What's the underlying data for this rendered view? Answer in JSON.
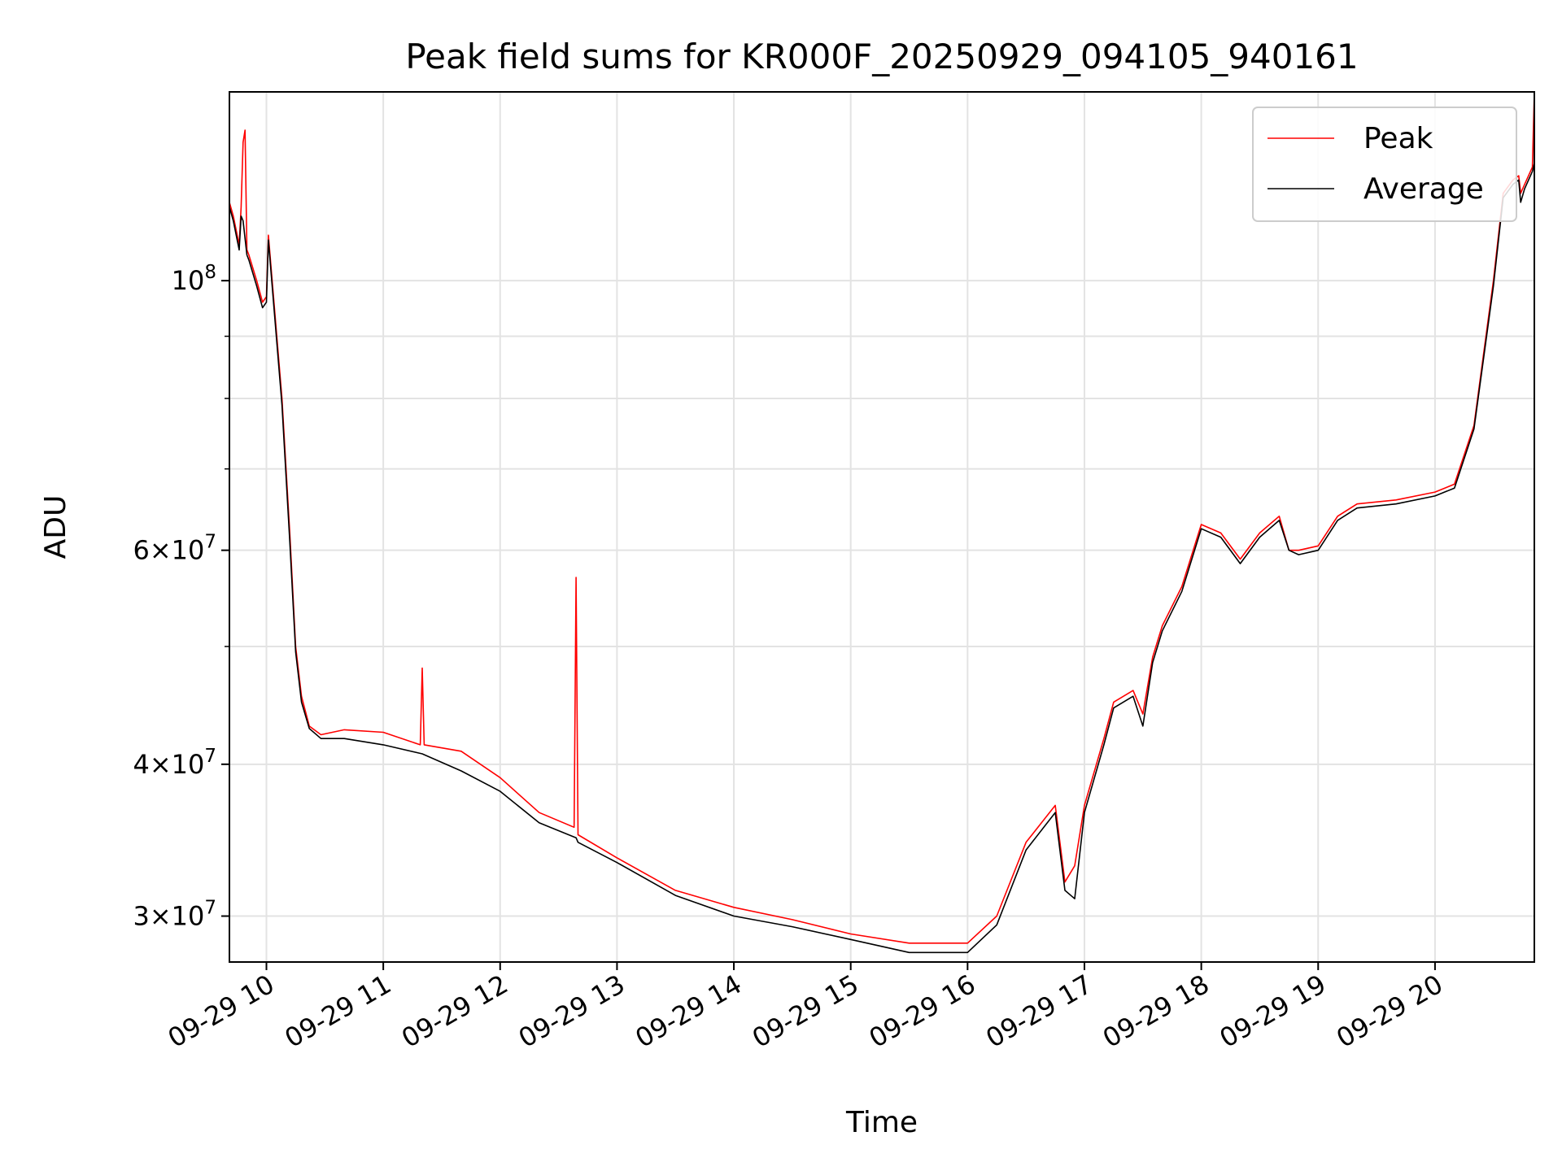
{
  "chart_data": {
    "type": "line",
    "title": "Peak field sums for KR000F_20250929_094105_940161",
    "xlabel": "Time",
    "ylabel": "ADU",
    "y_scale": "log",
    "ylim": [
      27500000,
      143000000
    ],
    "xlim": [
      "2025-09-29 09:41",
      "2025-09-29 20:51"
    ],
    "grid": true,
    "legend_position": "top-right",
    "x_ticks": [
      {
        "t": "2025-09-29 10:00",
        "label": "09-29 10"
      },
      {
        "t": "2025-09-29 11:00",
        "label": "09-29 11"
      },
      {
        "t": "2025-09-29 12:00",
        "label": "09-29 12"
      },
      {
        "t": "2025-09-29 13:00",
        "label": "09-29 13"
      },
      {
        "t": "2025-09-29 14:00",
        "label": "09-29 14"
      },
      {
        "t": "2025-09-29 15:00",
        "label": "09-29 15"
      },
      {
        "t": "2025-09-29 16:00",
        "label": "09-29 16"
      },
      {
        "t": "2025-09-29 17:00",
        "label": "09-29 17"
      },
      {
        "t": "2025-09-29 18:00",
        "label": "09-29 18"
      },
      {
        "t": "2025-09-29 19:00",
        "label": "09-29 19"
      },
      {
        "t": "2025-09-29 20:00",
        "label": "09-29 20"
      }
    ],
    "y_ticks": [
      {
        "value": 30000000,
        "base": "3×10",
        "exp": "7"
      },
      {
        "value": 40000000,
        "base": "4×10",
        "exp": "7"
      },
      {
        "value": 60000000,
        "base": "6×10",
        "exp": "7"
      },
      {
        "value": 100000000,
        "base": "10",
        "exp": "8"
      }
    ],
    "y_minor_ticks": [
      50000000,
      70000000,
      80000000,
      90000000
    ],
    "series": [
      {
        "name": "Peak",
        "color": "#ff0000",
        "x": [
          "2025-09-29 09:41",
          "2025-09-29 09:43",
          "2025-09-29 09:46",
          "2025-09-29 09:47",
          "2025-09-29 09:48",
          "2025-09-29 09:49",
          "2025-09-29 09:50",
          "2025-09-29 09:51",
          "2025-09-29 09:55",
          "2025-09-29 09:58",
          "2025-09-29 10:00",
          "2025-09-29 10:01",
          "2025-09-29 10:08",
          "2025-09-29 10:12",
          "2025-09-29 10:15",
          "2025-09-29 10:18",
          "2025-09-29 10:22",
          "2025-09-29 10:28",
          "2025-09-29 10:40",
          "2025-09-29 11:00",
          "2025-09-29 11:19",
          "2025-09-29 11:20",
          "2025-09-29 11:21",
          "2025-09-29 11:40",
          "2025-09-29 12:00",
          "2025-09-29 12:20",
          "2025-09-29 12:38",
          "2025-09-29 12:39",
          "2025-09-29 12:40",
          "2025-09-29 13:00",
          "2025-09-29 13:30",
          "2025-09-29 14:00",
          "2025-09-29 14:30",
          "2025-09-29 15:00",
          "2025-09-29 15:30",
          "2025-09-29 16:00",
          "2025-09-29 16:15",
          "2025-09-29 16:30",
          "2025-09-29 16:45",
          "2025-09-29 16:50",
          "2025-09-29 16:55",
          "2025-09-29 17:00",
          "2025-09-29 17:10",
          "2025-09-29 17:15",
          "2025-09-29 17:25",
          "2025-09-29 17:30",
          "2025-09-29 17:35",
          "2025-09-29 17:40",
          "2025-09-29 17:50",
          "2025-09-29 18:00",
          "2025-09-29 18:10",
          "2025-09-29 18:20",
          "2025-09-29 18:30",
          "2025-09-29 18:40",
          "2025-09-29 18:45",
          "2025-09-29 18:50",
          "2025-09-29 19:00",
          "2025-09-29 19:10",
          "2025-09-29 19:20",
          "2025-09-29 19:40",
          "2025-09-29 20:00",
          "2025-09-29 20:10",
          "2025-09-29 20:20",
          "2025-09-29 20:30",
          "2025-09-29 20:35",
          "2025-09-29 20:40",
          "2025-09-29 20:43",
          "2025-09-29 20:44",
          "2025-09-29 20:46",
          "2025-09-29 20:50",
          "2025-09-29 20:51"
        ],
        "y": [
          116000000,
          113000000,
          107000000,
          115000000,
          130000000,
          133000000,
          106000000,
          105000000,
          100000000,
          96000000,
          97000000,
          109000000,
          80000000,
          62000000,
          50000000,
          45500000,
          43000000,
          42300000,
          42700000,
          42500000,
          41500000,
          48000000,
          41500000,
          41000000,
          39000000,
          36500000,
          35500000,
          57000000,
          35000000,
          33500000,
          31500000,
          30500000,
          29800000,
          29000000,
          28500000,
          28500000,
          30000000,
          34500000,
          37000000,
          32000000,
          33000000,
          37000000,
          42000000,
          45000000,
          46000000,
          44000000,
          49000000,
          52000000,
          56000000,
          63000000,
          62000000,
          59000000,
          62000000,
          64000000,
          60000000,
          60000000,
          60500000,
          64000000,
          65500000,
          66000000,
          67000000,
          68000000,
          76000000,
          100000000,
          118000000,
          121000000,
          122000000,
          118000000,
          120000000,
          124000000,
          143000000
        ]
      },
      {
        "name": "Average",
        "color": "#000000",
        "x": [
          "2025-09-29 09:41",
          "2025-09-29 09:43",
          "2025-09-29 09:46",
          "2025-09-29 09:47",
          "2025-09-29 09:48",
          "2025-09-29 09:50",
          "2025-09-29 09:51",
          "2025-09-29 09:55",
          "2025-09-29 09:58",
          "2025-09-29 10:00",
          "2025-09-29 10:01",
          "2025-09-29 10:08",
          "2025-09-29 10:12",
          "2025-09-29 10:15",
          "2025-09-29 10:18",
          "2025-09-29 10:22",
          "2025-09-29 10:28",
          "2025-09-29 10:40",
          "2025-09-29 11:00",
          "2025-09-29 11:20",
          "2025-09-29 11:40",
          "2025-09-29 12:00",
          "2025-09-29 12:20",
          "2025-09-29 12:39",
          "2025-09-29 12:40",
          "2025-09-29 13:00",
          "2025-09-29 13:30",
          "2025-09-29 14:00",
          "2025-09-29 14:30",
          "2025-09-29 15:00",
          "2025-09-29 15:30",
          "2025-09-29 16:00",
          "2025-09-29 16:15",
          "2025-09-29 16:30",
          "2025-09-29 16:45",
          "2025-09-29 16:50",
          "2025-09-29 16:55",
          "2025-09-29 17:00",
          "2025-09-29 17:10",
          "2025-09-29 17:15",
          "2025-09-29 17:25",
          "2025-09-29 17:30",
          "2025-09-29 17:35",
          "2025-09-29 17:40",
          "2025-09-29 17:50",
          "2025-09-29 18:00",
          "2025-09-29 18:10",
          "2025-09-29 18:20",
          "2025-09-29 18:30",
          "2025-09-29 18:40",
          "2025-09-29 18:45",
          "2025-09-29 18:50",
          "2025-09-29 19:00",
          "2025-09-29 19:10",
          "2025-09-29 19:20",
          "2025-09-29 19:40",
          "2025-09-29 20:00",
          "2025-09-29 20:10",
          "2025-09-29 20:20",
          "2025-09-29 20:30",
          "2025-09-29 20:35",
          "2025-09-29 20:40",
          "2025-09-29 20:43",
          "2025-09-29 20:44",
          "2025-09-29 20:46",
          "2025-09-29 20:50",
          "2025-09-29 20:51"
        ],
        "y": [
          115000000,
          112000000,
          106000000,
          113000000,
          112000000,
          105000000,
          104000000,
          99000000,
          95000000,
          96000000,
          108000000,
          79000000,
          61000000,
          49500000,
          45000000,
          42800000,
          42000000,
          42000000,
          41500000,
          40800000,
          39500000,
          38000000,
          35800000,
          34800000,
          34500000,
          33200000,
          31200000,
          30000000,
          29400000,
          28700000,
          28000000,
          28000000,
          29500000,
          34000000,
          36500000,
          31500000,
          31000000,
          36500000,
          41500000,
          44500000,
          45500000,
          43000000,
          48500000,
          51500000,
          55500000,
          62500000,
          61500000,
          58500000,
          61500000,
          63500000,
          60000000,
          59500000,
          60000000,
          63500000,
          65000000,
          65500000,
          66500000,
          67500000,
          75500000,
          99000000,
          117000000,
          120000000,
          121000000,
          116000000,
          119000000,
          123000000,
          125000000
        ]
      }
    ]
  }
}
